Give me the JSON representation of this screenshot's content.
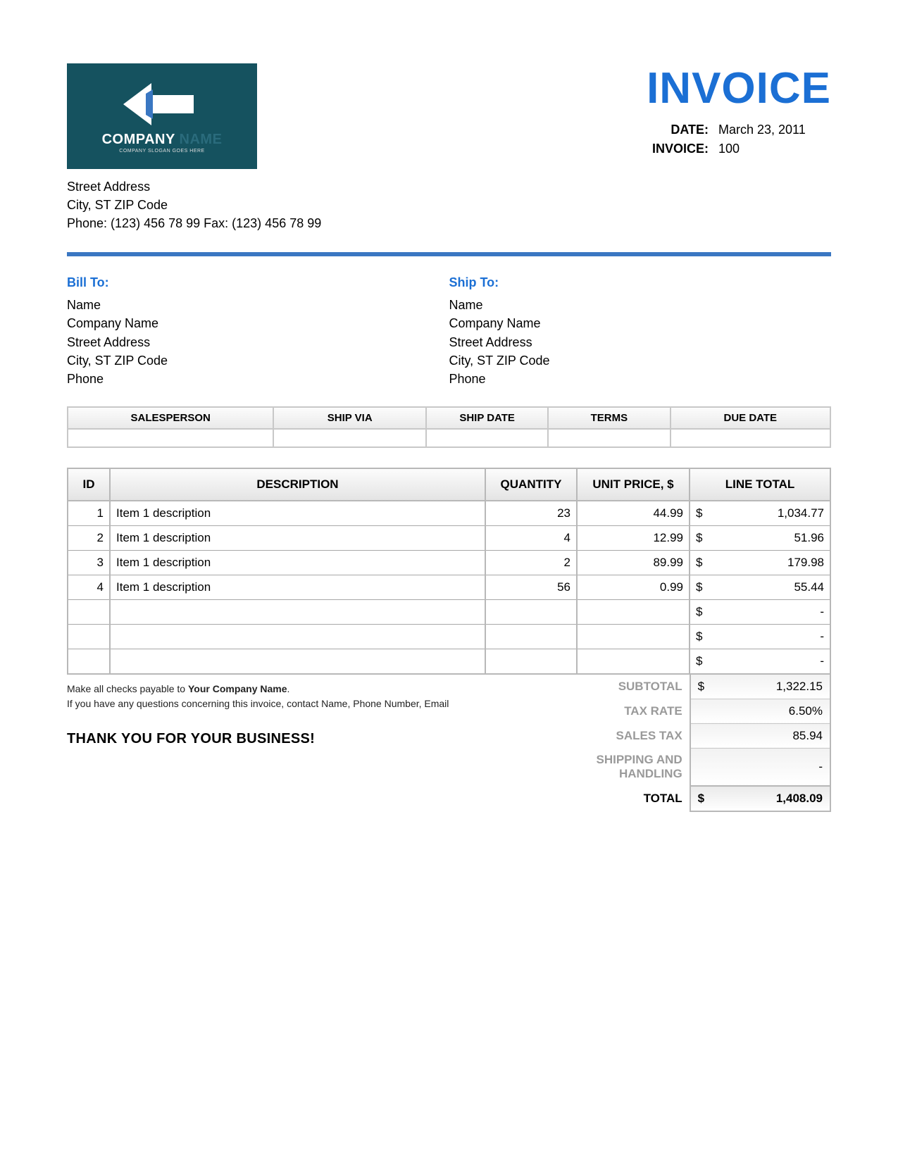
{
  "colors": {
    "brand_blue": "#1b6fd4",
    "divider_blue": "#3a77c2",
    "logo_bg": "#15525f",
    "header_gradient_top": "#fcfcfc",
    "header_gradient_bottom": "#e4e4e4",
    "border_gray": "#b8b8b8",
    "muted_label": "#9a9a9a"
  },
  "logo": {
    "company_main": "COMPANY",
    "company_suffix": "NAME",
    "slogan": "COMPANY SLOGAN GOES HERE"
  },
  "title": "INVOICE",
  "meta": {
    "date_label": "DATE:",
    "date_value": "March 23, 2011",
    "invoice_label": "INVOICE:",
    "invoice_value": "100"
  },
  "sender": {
    "line1": "Street Address",
    "line2": "City, ST  ZIP Code",
    "line3": "Phone: (123) 456 78 99   Fax: (123) 456 78 99"
  },
  "bill_to": {
    "title": "Bill To:",
    "name": "Name",
    "company": "Company Name",
    "street": "Street Address",
    "city": "City, ST  ZIP Code",
    "phone": "Phone"
  },
  "ship_to": {
    "title": "Ship To:",
    "name": "Name",
    "company": "Company Name",
    "street": "Street Address",
    "city": "City, ST  ZIP Code",
    "phone": "Phone"
  },
  "ship_meta": {
    "headers": [
      "SALESPERSON",
      "SHIP VIA",
      "SHIP DATE",
      "TERMS",
      "DUE DATE"
    ],
    "col_widths_pct": [
      27,
      20,
      16,
      16,
      21
    ]
  },
  "items": {
    "headers": [
      "ID",
      "DESCRIPTION",
      "QUANTITY",
      "UNIT PRICE, $",
      "LINE TOTAL"
    ],
    "rows": [
      {
        "id": "1",
        "desc": "Item 1 description",
        "qty": "23",
        "price": "44.99",
        "total": "1,034.77"
      },
      {
        "id": "2",
        "desc": "Item 1 description",
        "qty": "4",
        "price": "12.99",
        "total": "51.96"
      },
      {
        "id": "3",
        "desc": "Item 1 description",
        "qty": "2",
        "price": "89.99",
        "total": "179.98"
      },
      {
        "id": "4",
        "desc": "Item 1 description",
        "qty": "56",
        "price": "0.99",
        "total": "55.44"
      }
    ],
    "empty_rows": 3,
    "currency_symbol": "$",
    "empty_total": "-"
  },
  "footer": {
    "payable_prefix": "Make all checks payable to ",
    "payable_bold": "Your Company Name",
    "payable_suffix": ".",
    "questions": "If you have any questions concerning this invoice, contact Name, Phone Number, Email",
    "thanks": "THANK YOU FOR YOUR BUSINESS!"
  },
  "summary": {
    "subtotal_label": "SUBTOTAL",
    "subtotal_value": "1,322.15",
    "taxrate_label": "TAX RATE",
    "taxrate_value": "6.50%",
    "salestax_label": "SALES TAX",
    "salestax_value": "85.94",
    "shipping_label": "SHIPPING AND HANDLING",
    "shipping_value": "-",
    "total_label": "TOTAL",
    "total_value": "1,408.09",
    "currency_symbol": "$"
  }
}
